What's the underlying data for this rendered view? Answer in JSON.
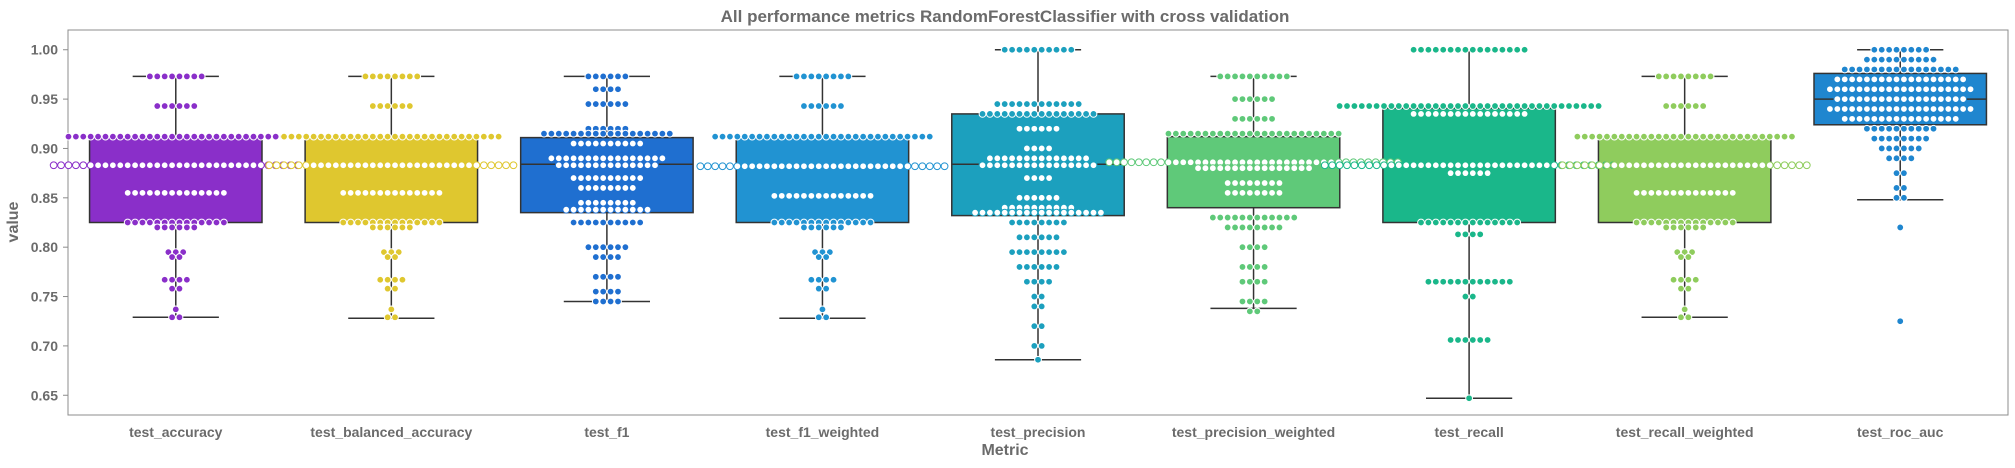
{
  "chart_data": {
    "type": "box-swarm",
    "title": "All performance metrics RandomForestClassifier with cross validation",
    "xlabel": "Metric",
    "ylabel": "value",
    "ylim": [
      0.63,
      1.02
    ],
    "yticks": [
      "0.65",
      "0.70",
      "0.75",
      "0.80",
      "0.85",
      "0.90",
      "0.95",
      "1.00"
    ],
    "grid": false,
    "legend": "none",
    "categories": [
      "test_accuracy",
      "test_balanced_accuracy",
      "test_f1",
      "test_f1_weighted",
      "test_precision",
      "test_precision_weighted",
      "test_recall",
      "test_recall_weighted",
      "test_roc_auc"
    ],
    "boxes": [
      {
        "name": "test_accuracy",
        "color": "#8a2fc9",
        "whislo": 0.729,
        "q1": 0.825,
        "med": 0.883,
        "q3": 0.912,
        "whishi": 0.973
      },
      {
        "name": "test_balanced_accuracy",
        "color": "#dfc72f",
        "whislo": 0.728,
        "q1": 0.825,
        "med": 0.883,
        "q3": 0.912,
        "whishi": 0.973
      },
      {
        "name": "test_f1",
        "color": "#1f6fd0",
        "whislo": 0.745,
        "q1": 0.835,
        "med": 0.884,
        "q3": 0.911,
        "whishi": 0.973
      },
      {
        "name": "test_f1_weighted",
        "color": "#2193d2",
        "whislo": 0.728,
        "q1": 0.825,
        "med": 0.882,
        "q3": 0.912,
        "whishi": 0.973
      },
      {
        "name": "test_precision",
        "color": "#1ca0be",
        "whislo": 0.686,
        "q1": 0.832,
        "med": 0.884,
        "q3": 0.935,
        "whishi": 1.0
      },
      {
        "name": "test_precision_weighted",
        "color": "#5fc979",
        "whislo": 0.738,
        "q1": 0.84,
        "med": 0.886,
        "q3": 0.912,
        "whishi": 0.973
      },
      {
        "name": "test_recall",
        "color": "#1ab78a",
        "whislo": 0.647,
        "q1": 0.825,
        "med": 0.883,
        "q3": 0.941,
        "whishi": 1.0
      },
      {
        "name": "test_recall_weighted",
        "color": "#8fcc5d",
        "whislo": 0.729,
        "q1": 0.825,
        "med": 0.883,
        "q3": 0.912,
        "whishi": 0.973
      },
      {
        "name": "test_roc_auc",
        "color": "#1f86cf",
        "whislo": 0.848,
        "q1": 0.924,
        "med": 0.95,
        "q3": 0.976,
        "whishi": 1.0
      }
    ],
    "swarm_counts": [
      [
        [
          0.973,
          8
        ],
        [
          0.943,
          6
        ],
        [
          0.912,
          30
        ],
        [
          0.883,
          34
        ],
        [
          0.855,
          14
        ],
        [
          0.825,
          14
        ],
        [
          0.82,
          6
        ],
        [
          0.795,
          3
        ],
        [
          0.79,
          2
        ],
        [
          0.767,
          4
        ],
        [
          0.758,
          2
        ],
        [
          0.737,
          1
        ],
        [
          0.729,
          2
        ]
      ],
      [
        [
          0.973,
          8
        ],
        [
          0.943,
          6
        ],
        [
          0.912,
          30
        ],
        [
          0.883,
          34
        ],
        [
          0.855,
          14
        ],
        [
          0.825,
          14
        ],
        [
          0.82,
          6
        ],
        [
          0.795,
          3
        ],
        [
          0.79,
          2
        ],
        [
          0.767,
          4
        ],
        [
          0.758,
          2
        ],
        [
          0.737,
          1
        ],
        [
          0.729,
          2
        ]
      ],
      [
        [
          0.973,
          6
        ],
        [
          0.96,
          4
        ],
        [
          0.945,
          6
        ],
        [
          0.92,
          6
        ],
        [
          0.915,
          18
        ],
        [
          0.905,
          10
        ],
        [
          0.89,
          16
        ],
        [
          0.883,
          14
        ],
        [
          0.87,
          10
        ],
        [
          0.86,
          8
        ],
        [
          0.845,
          8
        ],
        [
          0.838,
          12
        ],
        [
          0.825,
          10
        ],
        [
          0.8,
          6
        ],
        [
          0.79,
          4
        ],
        [
          0.77,
          4
        ],
        [
          0.755,
          4
        ],
        [
          0.745,
          4
        ]
      ],
      [
        [
          0.973,
          8
        ],
        [
          0.943,
          6
        ],
        [
          0.912,
          30
        ],
        [
          0.882,
          34
        ],
        [
          0.852,
          14
        ],
        [
          0.825,
          14
        ],
        [
          0.82,
          6
        ],
        [
          0.795,
          3
        ],
        [
          0.79,
          2
        ],
        [
          0.767,
          4
        ],
        [
          0.758,
          2
        ],
        [
          0.737,
          1
        ],
        [
          0.729,
          2
        ]
      ],
      [
        [
          1.0,
          10
        ],
        [
          0.945,
          12
        ],
        [
          0.935,
          16
        ],
        [
          0.92,
          6
        ],
        [
          0.9,
          4
        ],
        [
          0.89,
          14
        ],
        [
          0.883,
          16
        ],
        [
          0.87,
          4
        ],
        [
          0.85,
          6
        ],
        [
          0.84,
          10
        ],
        [
          0.835,
          18
        ],
        [
          0.825,
          8
        ],
        [
          0.81,
          6
        ],
        [
          0.795,
          8
        ],
        [
          0.78,
          6
        ],
        [
          0.765,
          4
        ],
        [
          0.75,
          2
        ],
        [
          0.74,
          2
        ],
        [
          0.72,
          2
        ],
        [
          0.7,
          2
        ],
        [
          0.686,
          1
        ]
      ],
      [
        [
          0.973,
          10
        ],
        [
          0.95,
          6
        ],
        [
          0.93,
          6
        ],
        [
          0.915,
          24
        ],
        [
          0.886,
          40
        ],
        [
          0.88,
          16
        ],
        [
          0.865,
          8
        ],
        [
          0.855,
          8
        ],
        [
          0.83,
          12
        ],
        [
          0.82,
          8
        ],
        [
          0.8,
          4
        ],
        [
          0.78,
          4
        ],
        [
          0.765,
          4
        ],
        [
          0.745,
          4
        ],
        [
          0.735,
          2
        ]
      ],
      [
        [
          1.0,
          16
        ],
        [
          0.943,
          36
        ],
        [
          0.935,
          16
        ],
        [
          0.883,
          40
        ],
        [
          0.875,
          6
        ],
        [
          0.825,
          14
        ],
        [
          0.813,
          4
        ],
        [
          0.765,
          12
        ],
        [
          0.75,
          2
        ],
        [
          0.706,
          6
        ],
        [
          0.647,
          1
        ]
      ],
      [
        [
          0.973,
          8
        ],
        [
          0.943,
          6
        ],
        [
          0.912,
          30
        ],
        [
          0.883,
          34
        ],
        [
          0.855,
          14
        ],
        [
          0.825,
          14
        ],
        [
          0.82,
          6
        ],
        [
          0.795,
          3
        ],
        [
          0.79,
          2
        ],
        [
          0.767,
          4
        ],
        [
          0.758,
          2
        ],
        [
          0.737,
          1
        ],
        [
          0.729,
          2
        ]
      ],
      [
        [
          1.0,
          8
        ],
        [
          0.99,
          10
        ],
        [
          0.98,
          16
        ],
        [
          0.97,
          18
        ],
        [
          0.96,
          20
        ],
        [
          0.95,
          18
        ],
        [
          0.94,
          20
        ],
        [
          0.93,
          16
        ],
        [
          0.92,
          10
        ],
        [
          0.91,
          8
        ],
        [
          0.9,
          6
        ],
        [
          0.89,
          4
        ],
        [
          0.875,
          2
        ],
        [
          0.86,
          2
        ],
        [
          0.85,
          2
        ],
        [
          0.82,
          1
        ],
        [
          0.725,
          1
        ]
      ]
    ]
  }
}
